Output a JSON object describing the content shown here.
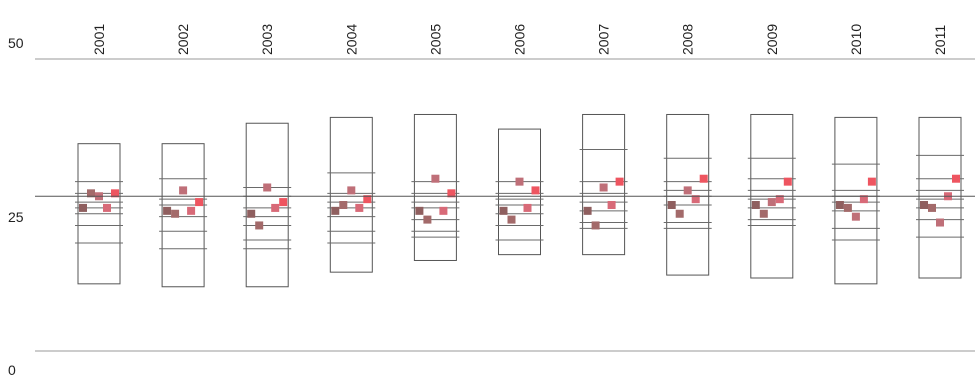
{
  "chart_data": {
    "type": "box-strip",
    "title": "",
    "xlabel": "",
    "ylabel": "",
    "ylim": [
      0,
      50
    ],
    "y_ticks": [
      "0",
      "25",
      "50"
    ],
    "reference_line": 26.5,
    "grid": "horizontal lines at 0 and 50",
    "categories": [
      "2001",
      "2002",
      "2003",
      "2004",
      "2005",
      "2006",
      "2007",
      "2008",
      "2009",
      "2010",
      "2011"
    ],
    "boxes": [
      {
        "low": 11.5,
        "high": 35.5,
        "levels": [
          18.5,
          21.5,
          23.5,
          24.5,
          25.5,
          27.0,
          29.0
        ]
      },
      {
        "low": 11.0,
        "high": 35.5,
        "levels": [
          17.5,
          20.5,
          23.0,
          25.0,
          26.0,
          29.5
        ]
      },
      {
        "low": 11.0,
        "high": 39.0,
        "levels": [
          17.5,
          19.0,
          21.5,
          23.0,
          24.5,
          26.5,
          28.0
        ]
      },
      {
        "low": 13.5,
        "high": 40.0,
        "levels": [
          18.5,
          20.5,
          23.0,
          24.5,
          25.5,
          27.0,
          30.5
        ]
      },
      {
        "low": 15.5,
        "high": 40.5,
        "levels": [
          19.5,
          20.5,
          22.5,
          24.5,
          25.5,
          27.0,
          29.0
        ]
      },
      {
        "low": 16.5,
        "high": 38.0,
        "levels": [
          19.0,
          21.5,
          23.5,
          25.0,
          26.0,
          27.0,
          29.0
        ]
      },
      {
        "low": 16.5,
        "high": 40.5,
        "levels": [
          21.0,
          22.0,
          24.0,
          25.5,
          27.0,
          29.0,
          34.5
        ]
      },
      {
        "low": 13.0,
        "high": 40.5,
        "levels": [
          21.0,
          22.0,
          25.0,
          26.5,
          27.5,
          29.0,
          33.0
        ]
      },
      {
        "low": 12.5,
        "high": 40.5,
        "levels": [
          21.5,
          22.5,
          24.5,
          26.0,
          27.5,
          29.5,
          33.0
        ]
      },
      {
        "low": 11.5,
        "high": 40.0,
        "levels": [
          19.0,
          21.0,
          24.0,
          25.5,
          26.5,
          27.5,
          32.0
        ]
      },
      {
        "low": 12.5,
        "high": 40.0,
        "levels": [
          19.5,
          22.5,
          24.5,
          26.0,
          27.5,
          29.5,
          33.5
        ]
      }
    ],
    "series": [
      {
        "color": "#8f5f5f",
        "values": [
          24.5,
          24.0,
          23.5,
          24.0,
          24.0,
          24.0,
          24.0,
          25.0,
          25.0,
          25.0,
          25.0
        ]
      },
      {
        "color": "#a36a6a",
        "values": [
          27.0,
          23.5,
          21.5,
          25.0,
          22.5,
          22.5,
          21.5,
          23.5,
          23.5,
          24.5,
          24.5
        ]
      },
      {
        "color": "#bf6f78",
        "values": [
          26.5,
          27.5,
          28.0,
          27.5,
          29.5,
          29.0,
          28.0,
          27.5,
          25.5,
          23.0,
          22.0
        ]
      },
      {
        "color": "#d86a78",
        "values": [
          24.5,
          24.0,
          24.5,
          24.5,
          24.0,
          24.5,
          25.0,
          26.0,
          26.0,
          26.0,
          26.5
        ]
      },
      {
        "color": "#ee5560",
        "values": [
          27.0,
          25.5,
          25.5,
          26.0,
          27.0,
          27.5,
          29.0,
          29.5,
          29.0,
          29.0,
          29.5
        ]
      }
    ]
  }
}
